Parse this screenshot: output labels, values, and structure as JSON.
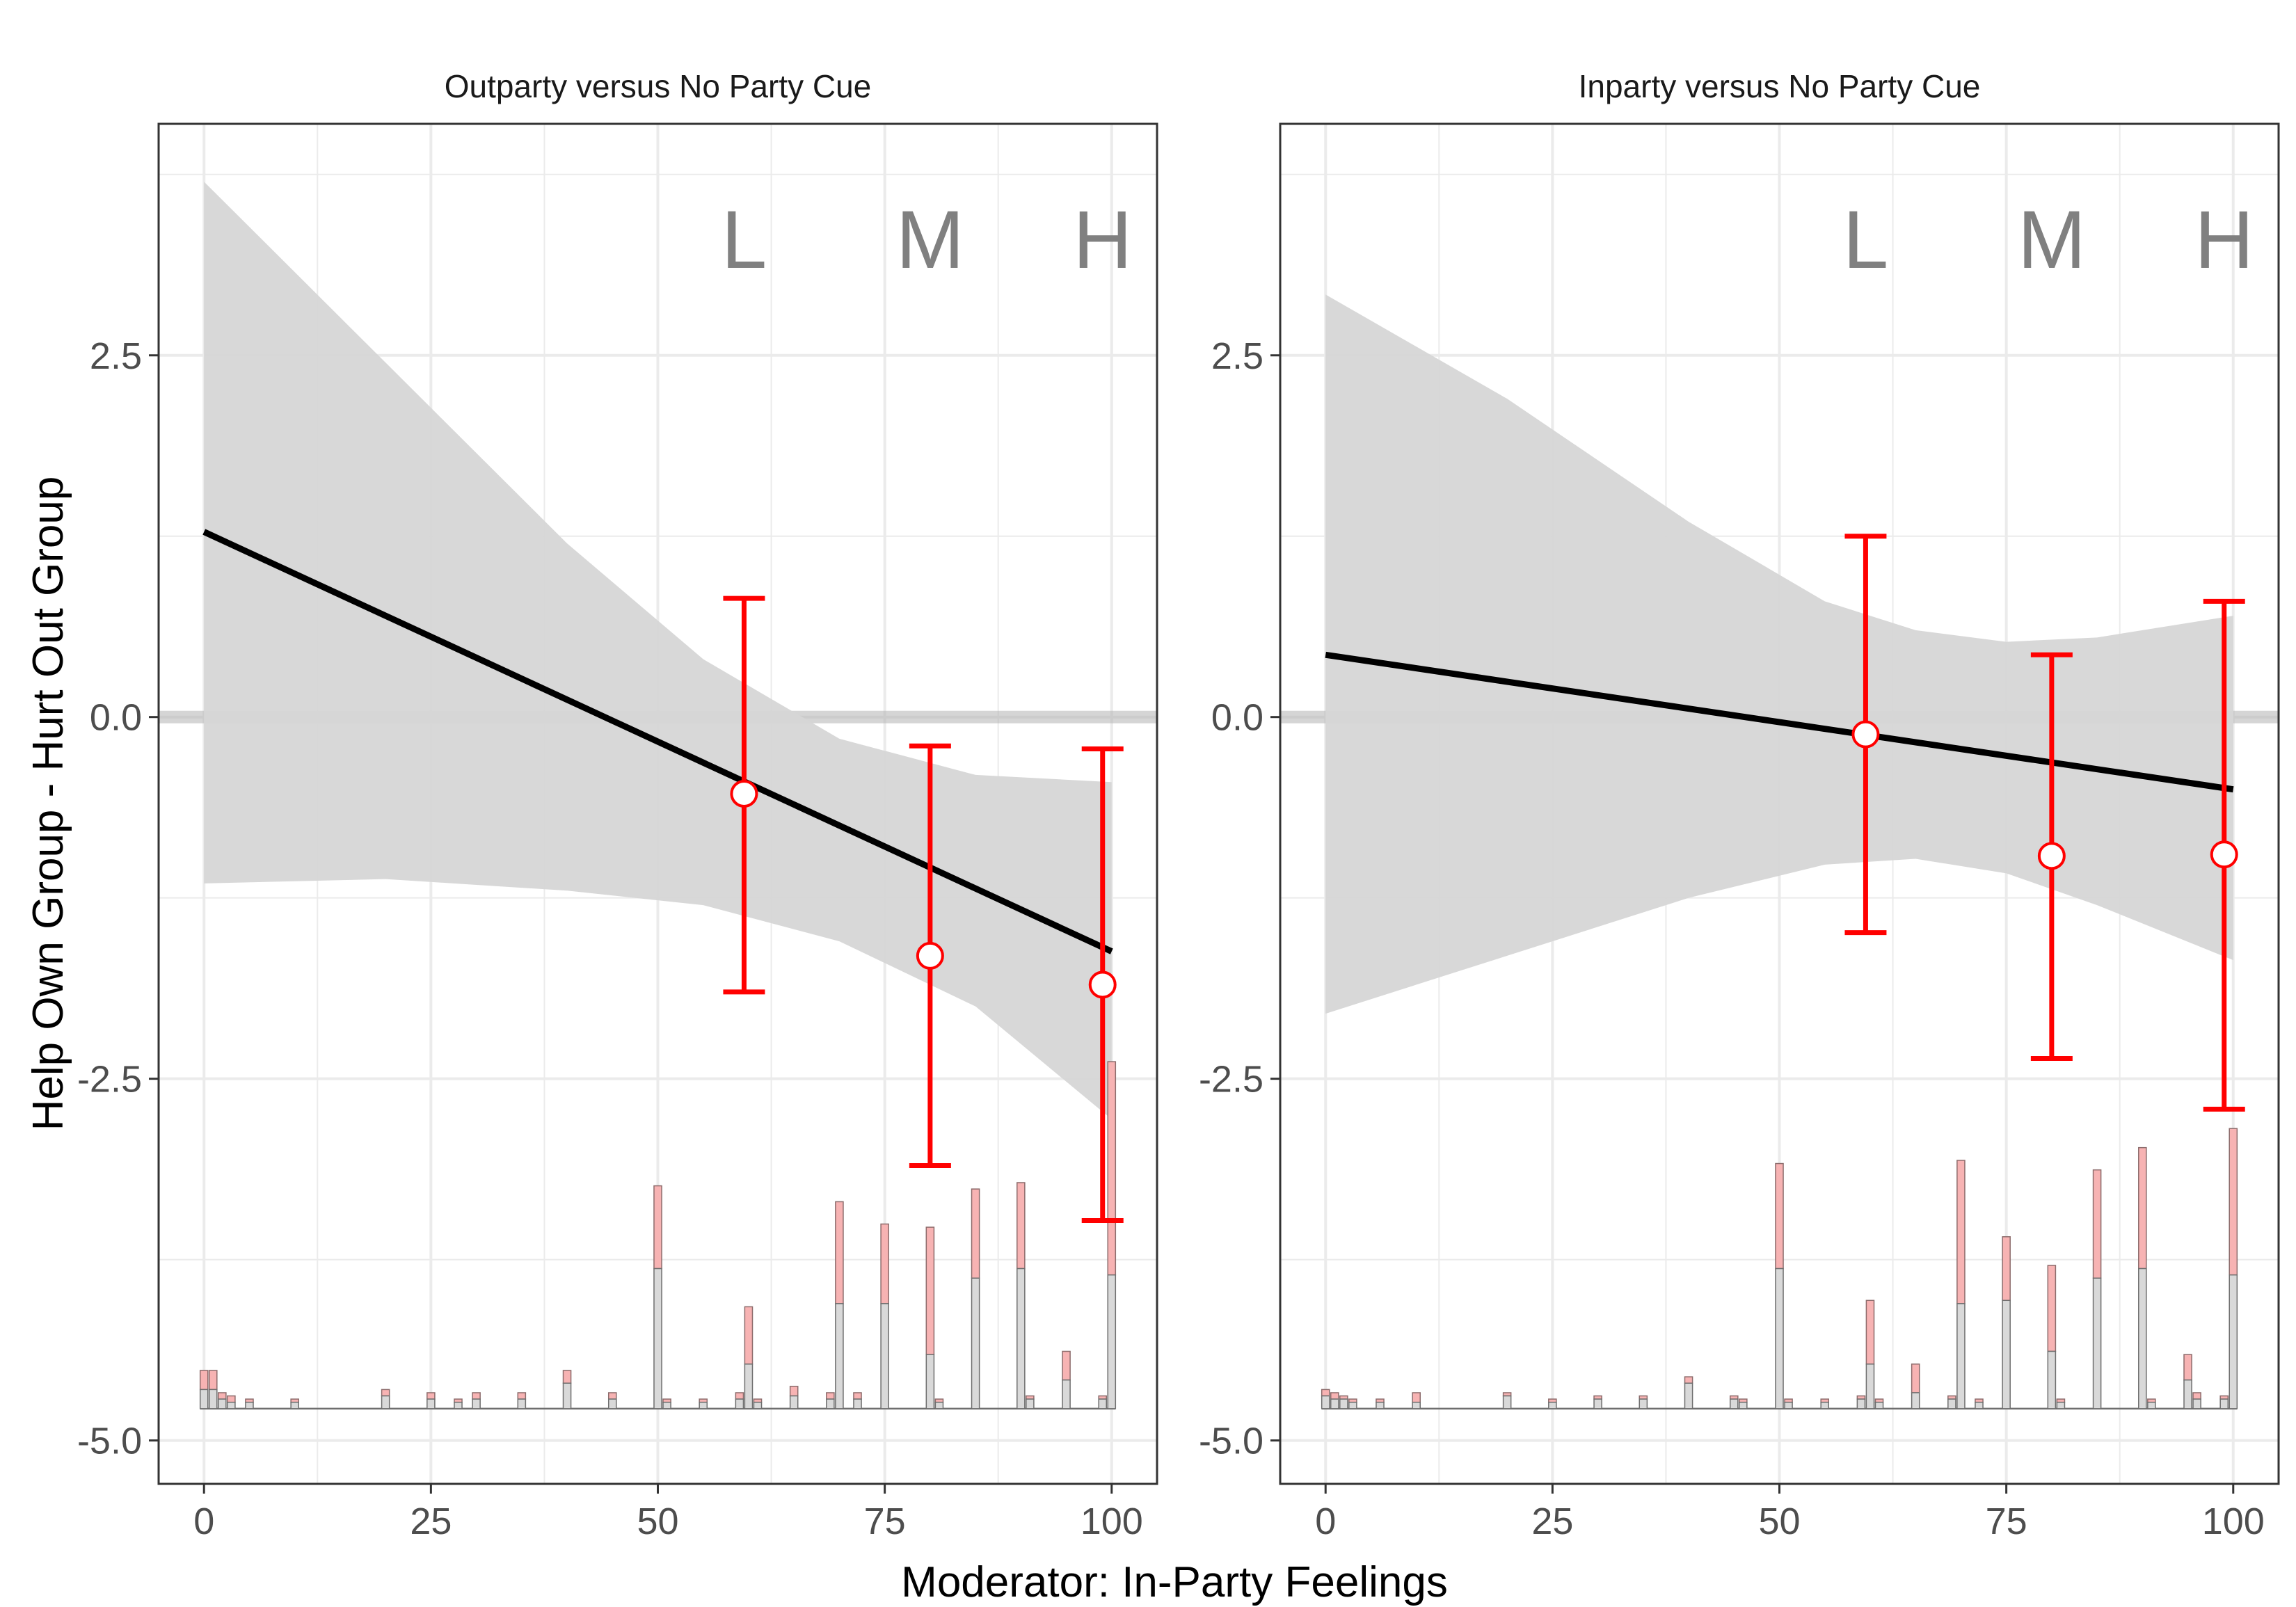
{
  "chart_data": {
    "type": "line",
    "xlabel": "Moderator: In-Party Feelings",
    "ylabel": "Help Own Group - Hurt Out Group",
    "xlim": [
      -5,
      105
    ],
    "ylim": [
      -5.3,
      4.1
    ],
    "x_ticks": [
      "0",
      "25",
      "50",
      "75",
      "100"
    ],
    "y_ticks": [
      "-5.0",
      "-2.5",
      "0.0",
      "2.5"
    ],
    "bin_labels": [
      "L",
      "M",
      "H"
    ],
    "colors": {
      "line": "#000000",
      "ribbon": "#d6d6d6",
      "estimate": "#ff0000",
      "hist_treated": "#f7b3b3",
      "hist_control": "#d9d9d9",
      "grid": "#ebebeb",
      "zero_line": "#b3b3b3"
    },
    "panels": [
      {
        "title": "Outparty versus No Party Cue",
        "line": {
          "x": [
            0,
            100
          ],
          "y": [
            1.28,
            -1.62
          ]
        },
        "ribbon": {
          "x": [
            0,
            20,
            40,
            55,
            70,
            85,
            100
          ],
          "upper": [
            3.7,
            2.45,
            1.2,
            0.4,
            -0.15,
            -0.4,
            -0.45
          ],
          "lower": [
            -1.15,
            -1.12,
            -1.2,
            -1.3,
            -1.55,
            -2.0,
            -2.78
          ]
        },
        "estimates": [
          {
            "label": "L",
            "x": 59.5,
            "y": -0.53,
            "lower": -1.9,
            "upper": 0.82
          },
          {
            "label": "M",
            "x": 80,
            "y": -1.65,
            "lower": -3.1,
            "upper": -0.2
          },
          {
            "label": "H",
            "x": 99,
            "y": -1.85,
            "lower": -3.48,
            "upper": -0.22
          }
        ],
        "histogram": {
          "x": [
            0,
            1,
            2,
            3,
            5,
            10,
            20,
            25,
            28,
            30,
            35,
            40,
            45,
            50,
            51,
            55,
            59,
            60,
            61,
            65,
            69,
            70,
            72,
            75,
            80,
            81,
            85,
            90,
            91,
            95,
            99,
            100
          ],
          "control": [
            0.06,
            0.06,
            0.03,
            0.02,
            0.02,
            0.02,
            0.04,
            0.03,
            0.02,
            0.03,
            0.03,
            0.08,
            0.03,
            0.44,
            0.02,
            0.02,
            0.03,
            0.14,
            0.02,
            0.04,
            0.03,
            0.33,
            0.03,
            0.33,
            0.17,
            0.02,
            0.41,
            0.44,
            0.03,
            0.09,
            0.03,
            0.42
          ],
          "treated": [
            0.06,
            0.06,
            0.02,
            0.02,
            0.01,
            0.01,
            0.02,
            0.02,
            0.01,
            0.02,
            0.02,
            0.04,
            0.02,
            0.26,
            0.01,
            0.01,
            0.02,
            0.18,
            0.01,
            0.03,
            0.02,
            0.32,
            0.02,
            0.25,
            0.4,
            0.01,
            0.28,
            0.27,
            0.01,
            0.09,
            0.01,
            0.67
          ]
        }
      },
      {
        "title": "Inparty versus No Party Cue",
        "line": {
          "x": [
            0,
            100
          ],
          "y": [
            0.43,
            -0.5
          ]
        },
        "ribbon": {
          "x": [
            0,
            20,
            40,
            55,
            65,
            75,
            85,
            100
          ],
          "upper": [
            2.92,
            2.2,
            1.35,
            0.8,
            0.6,
            0.52,
            0.55,
            0.7
          ],
          "lower": [
            -2.05,
            -1.65,
            -1.25,
            -1.02,
            -0.98,
            -1.08,
            -1.3,
            -1.68
          ]
        },
        "estimates": [
          {
            "label": "L",
            "x": 59.5,
            "y": -0.12,
            "lower": -1.49,
            "upper": 1.25
          },
          {
            "label": "M",
            "x": 80,
            "y": -0.96,
            "lower": -2.36,
            "upper": 0.43
          },
          {
            "label": "H",
            "x": 99,
            "y": -0.95,
            "lower": -2.71,
            "upper": 0.8
          }
        ],
        "histogram": {
          "x": [
            0,
            1,
            2,
            3,
            6,
            10,
            20,
            25,
            30,
            35,
            40,
            45,
            46,
            50,
            51,
            55,
            59,
            60,
            61,
            65,
            69,
            70,
            72,
            75,
            80,
            81,
            85,
            90,
            91,
            95,
            96,
            99,
            100
          ],
          "control": [
            0.04,
            0.03,
            0.03,
            0.02,
            0.02,
            0.02,
            0.04,
            0.02,
            0.03,
            0.03,
            0.08,
            0.03,
            0.02,
            0.44,
            0.02,
            0.02,
            0.03,
            0.14,
            0.02,
            0.05,
            0.03,
            0.33,
            0.02,
            0.34,
            0.18,
            0.02,
            0.41,
            0.44,
            0.02,
            0.09,
            0.03,
            0.03,
            0.42
          ],
          "treated": [
            0.02,
            0.02,
            0.01,
            0.01,
            0.01,
            0.03,
            0.01,
            0.01,
            0.01,
            0.01,
            0.02,
            0.01,
            0.01,
            0.33,
            0.01,
            0.01,
            0.01,
            0.2,
            0.01,
            0.09,
            0.01,
            0.45,
            0.01,
            0.2,
            0.27,
            0.01,
            0.34,
            0.38,
            0.01,
            0.08,
            0.02,
            0.01,
            0.46
          ]
        }
      }
    ]
  }
}
